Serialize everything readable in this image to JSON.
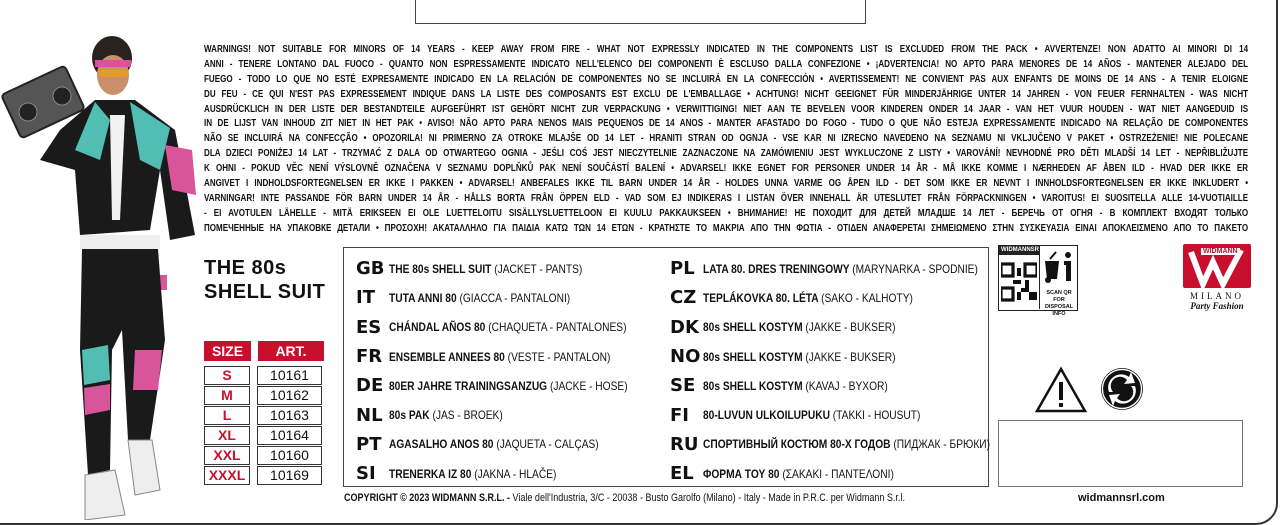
{
  "warnings": [
    "WARNINGS! NOT SUITABLE FOR MINORS OF 14 YEARS - KEEP AWAY FROM FIRE - WHAT NOT EXPRESSLY INDICATED IN THE COMPONENTS LIST IS EXCLUDED FROM THE PACK • AVVERTENZE! NON ADATTO AI MINORI DI 14",
    "ANNI - TENERE LONTANO DAL FUOCO - QUANTO NON ESPRESSAMENTE INDICATO NELL'ELENCO DEI COMPONENTI È ESCLUSO DALLA CONFEZIONE • ¡ADVERTENCIA! NO APTO PARA MENORES DE 14 AÑOS - MANTENER ALEJADO DEL",
    "FUEGO - TODO LO QUE NO ESTÉ EXPRESAMENTE INDICADO EN LA RELACIÓN DE COMPONENTES NO SE INCLUIRÁ EN LA CONFECCIÓN • AVERTISSEMENT! NE CONVIENT PAS AUX ENFANTS DE MOINS DE 14 ANS - A TENIR ELOIGNE",
    "DU FEU - CE QUI N'EST PAS EXPRESSEMENT INDIQUE DANS LA LISTE DES COMPOSANTS EST EXCLU DE L'EMBALLAGE • ACHTUNG! NICHT GEEIGNET FÜR MINDERJÄHRIGE UNTER 14 JAHREN - VON FEUER FERNHALTEN - WAS NICHT",
    "AUSDRÜCKLICH IN DER LISTE DER BESTANDTEILE AUFGEFÜHRT IST GEHÖRT NICHT ZUR VERPACKUNG • VERWITTIGING! NIET AAN TE BEVELEN VOOR KINDEREN ONDER 14 JAAR - VAN HET VUUR HOUDEN - WAT NIET AANGEDUID IS",
    "IN DE LIJST VAN INHOUD ZIT NIET IN HET PAK • AVISO! NÃO APTO PARA NENOS MAIS PEQUENOS DE 14 ANOS - MANTER AFASTADO DO FOGO - TUDO O QUE NÃO ESTEJA EXPRESSAMENTE INDICADO NA RELAÇÃO DE COMPONENTES",
    "NÃO SE INCLUIRÁ NA CONFECÇÃO • OPOZORILA! NI PRIMERNO ZA OTROKE MLAJŠE OD 14 LET - HRANITI STRAN OD OGNJA - VSE KAR NI IZRECNO NAVEDENO NA SEZNAMU NI VKLJUČENO V PAKET • OSTRZEŻENIE! NIE POLECANE",
    "DLA DZIECI PONIŻEJ 14 LAT - TRZYMAĆ Z DALA OD OTWARTEGO OGNIA - JEŚLI COŚ JEST NIECZYTELNIE ZAZNACZONE NA ZAMÓWIENIU JEST WYKLUCZONE Z LISTY • VAROVÁNÍ! NEVHODNÉ PRO DĚTI MLADŠÍ 14 LET - NEPŘIBLIŽUJTE",
    "K OHNI - POKUD VĚC NENÍ VÝSLOVNĚ OZNAČENA V SEZNAMU DOPLŇKŮ PAK NENÍ SOUČÁSTÍ BALENÍ • ADVARSEL! IKKE EGNET FOR PERSONER UNDER 14 ÅR - MÅ IKKE KOMME I NÆRHEDEN AF ÅBEN ILD - HVAD DER IKKE ER",
    "ANGIVET I INDHOLDSFORTEGNELSEN ER IKKE I PAKKEN • ADVARSEL! ANBEFALES IKKE TIL BARN UNDER 14 ÅR - HOLDES UNNA VARME OG ÅPEN ILD - DET SOM IKKE ER NEVNT I INNHOLDSFORTEGNELSEN ER IKKE INKLUDERT •",
    "VARNINGAR! INTE PASSANDE FÖR BARN UNDER 14 ÅR - HÅLLS BORTA FRÅN ÖPPEN ELD - VAD SOM EJ INDIKERAS I LISTAN ÖVER INNEHALL ÄR UTESLUTET FRÅN FÖRPACKNINGEN • VAROITUS! EI SUOSITELLA ALLE 14-VUOTIAILLE",
    "- EI  AVOTULEN LÄHELLE - MITÄ ERIKSEEN EI OLE LUETTELOITU SISÄLLYSLUETTELOON EI KUULU PAKKAUKSEEN • ВНИМАНИЕ! НЕ ПОХОДИТ ДЛЯ ДЕТЕЙ МЛАДШЕ 14 ЛЕТ - БЕРЕЧЬ ОТ ОГНЯ - В КОМПЛЕКТ ВХОДЯТ ТОЛЬКО",
    "ПОМЕЧЕННЫЕ НА УПАКОВКЕ ДЕТАЛИ • ΠΡΟΣΟΧΗ! ΑΚΑΤΑΛΛΗΛΟ ΓΙΑ ΠΑΙΔΙΑ ΚΑΤΩ ΤΩΝ 14 ΕΤΩΝ - ΚΡΑΤΗΣΤΕ ΤΟ ΜΑΚΡΙΑ ΑΠΟ ΤΗΝ ΦΩΤΙΑ - ΟΤΙΔΕΝ ΑΝΑΦΕΡΕΤΑΙ ΣΗΜΕΙΩΜΕΝΟ ΣΤΗΝ ΣΥΣΚΕΥΑΣΙΑ ΕΙΝΑΙ ΑΠΟΚΛΕΙΣΜΕΝΟ ΑΠΟ ΤΟ ΠΑΚΕΤΟ"
  ],
  "product": {
    "title_line1": "THE 80s",
    "title_line2": "SHELL SUIT"
  },
  "size_table": {
    "headers": [
      "SIZE",
      "ART."
    ],
    "rows": [
      {
        "size": "S",
        "art": "10161"
      },
      {
        "size": "M",
        "art": "10162"
      },
      {
        "size": "L",
        "art": "10163"
      },
      {
        "size": "XL",
        "art": "10164"
      },
      {
        "size": "XXL",
        "art": "10160"
      },
      {
        "size": "XXXL",
        "art": "10169"
      }
    ]
  },
  "translations": [
    {
      "code": "GB",
      "name": "THE 80s SHELL SUIT",
      "desc": "(JACKET - PANTS)"
    },
    {
      "code": "IT",
      "name": "TUTA ANNI 80",
      "desc": "(GIACCA - PANTALONI)"
    },
    {
      "code": "ES",
      "name": "CHÁNDAL AÑOS 80",
      "desc": "(CHAQUETA - PANTALONES)"
    },
    {
      "code": "FR",
      "name": "ENSEMBLE ANNEES 80",
      "desc": "(VESTE - PANTALON)"
    },
    {
      "code": "DE",
      "name": "80ER JAHRE TRAININGSANZUG",
      "desc": "(JACKE - HOSE)"
    },
    {
      "code": "NL",
      "name": "80s PAK",
      "desc": "(JAS - BROEK)"
    },
    {
      "code": "PT",
      "name": "AGASALHO ANOS 80",
      "desc": "(JAQUETA - CALÇAS)"
    },
    {
      "code": "SI",
      "name": "TRENERKA IZ 80",
      "desc": "(JAKNA - HLAČE)"
    },
    {
      "code": "PL",
      "name": "LATA 80. DRES TRENINGOWY",
      "desc": "(MARYNARKA - SPODNIE)"
    },
    {
      "code": "CZ",
      "name": "TEPLÁKOVKA 80. LÉTA",
      "desc": "(SAKO - KALHOTY)"
    },
    {
      "code": "DK",
      "name": "80s SHELL KOSTYM",
      "desc": "(JAKKE - BUKSER)"
    },
    {
      "code": "NO",
      "name": "80s SHELL KOSTYM",
      "desc": "(JAKKE - BUKSER)"
    },
    {
      "code": "SE",
      "name": "80s SHELL KOSTYM",
      "desc": "(KAVAJ - BYXOR)"
    },
    {
      "code": "FI",
      "name": "80-LUVUN ULKOILUPUKU",
      "desc": "(TAKKI - HOUSUT)"
    },
    {
      "code": "RU",
      "name": "СПОРТИВНЫЙ КОСТЮМ 80-Х ГОДОВ",
      "desc": "(ПИДЖАК - БРЮКИ)"
    },
    {
      "code": "EL",
      "name": "ΦΟΡΜΑ ΤΟΥ 80",
      "desc": "(ΣΑΚΑΚΙ - ΠΑΝΤΕΛΟΝΙ)"
    }
  ],
  "qr_badge": {
    "header": "WIDMANNSRL.COM",
    "caption_line1": "SCAN QR FOR",
    "caption_line2": "DISPOSAL INFO"
  },
  "brand": {
    "name": "WIDMANN",
    "city": "MILANO",
    "tagline": "Party Fashion",
    "color": "#c8102e"
  },
  "icons": [
    "warning-triangle-icon",
    "green-dot-recycle-icon"
  ],
  "footer": {
    "copyright_bold": "COPYRIGHT © 2023 WIDMANN S.R.L. -",
    "copyright_rest": " Viale dell'Industria, 3/C - 20038 - Busto Garolfo (Milano) - Italy - Made in P.R.C. per Widmann S.r.l.",
    "website": "widmannsrl.com"
  },
  "colors": {
    "accent_red": "#c8102e",
    "jacket_teal": "#52bdb3",
    "jacket_pink": "#d9559b"
  }
}
